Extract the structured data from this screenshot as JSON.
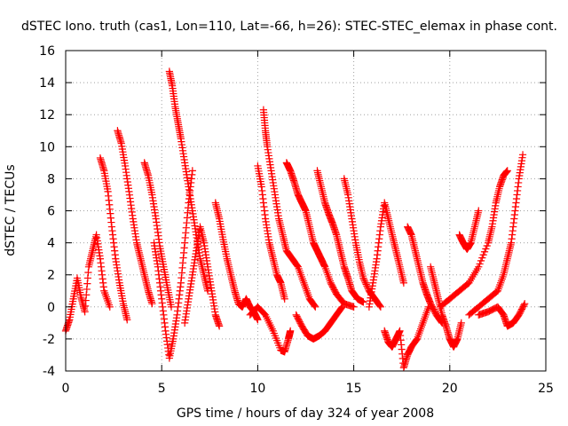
{
  "chart_data": {
    "type": "scatter",
    "title": "dSTEC Iono. truth (cas1, Lon=110, Lat=-66, h=26): STEC-STEC_elemax in phase cont.",
    "xlabel": "GPS time / hours of day 324 of year 2008",
    "ylabel": "dSTEC  / TECUs",
    "xlim": [
      0,
      25
    ],
    "ylim": [
      -4,
      16
    ],
    "x_ticks": [
      0,
      5,
      10,
      15,
      20,
      25
    ],
    "y_ticks": [
      -4,
      -2,
      0,
      2,
      4,
      6,
      8,
      10,
      12,
      14,
      16
    ],
    "grid": true,
    "marker": "plus",
    "series_color": "#ff0000",
    "series": [
      {
        "values": [
          [
            0.0,
            -1.5
          ],
          [
            0.2,
            -0.8
          ],
          [
            0.4,
            0.5
          ],
          [
            0.6,
            1.8
          ],
          [
            0.8,
            0.6
          ],
          [
            1.0,
            -0.3
          ],
          [
            1.2,
            2.5
          ],
          [
            1.4,
            3.5
          ],
          [
            1.6,
            4.5
          ],
          [
            1.8,
            3.0
          ],
          [
            2.0,
            1.0
          ],
          [
            2.3,
            0.0
          ]
        ]
      },
      {
        "values": [
          [
            1.8,
            9.3
          ],
          [
            2.0,
            8.5
          ],
          [
            2.2,
            7.2
          ],
          [
            2.4,
            5.0
          ],
          [
            2.6,
            3.0
          ],
          [
            2.8,
            1.5
          ],
          [
            3.0,
            0.2
          ],
          [
            3.2,
            -0.8
          ]
        ]
      },
      {
        "values": [
          [
            2.7,
            11.0
          ],
          [
            2.9,
            10.2
          ],
          [
            3.1,
            8.8
          ],
          [
            3.3,
            7.2
          ],
          [
            3.5,
            5.5
          ],
          [
            3.7,
            4.0
          ],
          [
            3.9,
            3.0
          ],
          [
            4.1,
            2.0
          ],
          [
            4.3,
            1.0
          ],
          [
            4.5,
            0.2
          ]
        ]
      },
      {
        "values": [
          [
            4.1,
            9.0
          ],
          [
            4.3,
            8.2
          ],
          [
            4.5,
            7.0
          ],
          [
            4.7,
            5.5
          ],
          [
            4.9,
            3.8
          ],
          [
            5.1,
            2.5
          ],
          [
            5.3,
            1.2
          ],
          [
            5.5,
            0.0
          ]
        ]
      },
      {
        "values": [
          [
            5.4,
            14.7
          ],
          [
            5.55,
            13.8
          ],
          [
            5.7,
            12.5
          ],
          [
            5.85,
            11.5
          ],
          [
            6.0,
            10.5
          ],
          [
            6.2,
            9.0
          ],
          [
            6.4,
            7.5
          ],
          [
            6.6,
            6.0
          ],
          [
            6.8,
            4.5
          ],
          [
            7.0,
            3.0
          ],
          [
            7.2,
            2.0
          ],
          [
            7.4,
            1.0
          ]
        ]
      },
      {
        "values": [
          [
            4.6,
            4.0
          ],
          [
            4.8,
            2.5
          ],
          [
            5.0,
            0.5
          ],
          [
            5.2,
            -1.5
          ],
          [
            5.4,
            -3.2
          ],
          [
            5.6,
            -2.0
          ],
          [
            5.8,
            -0.5
          ],
          [
            6.0,
            1.5
          ],
          [
            6.2,
            4.0
          ],
          [
            6.4,
            6.5
          ],
          [
            6.6,
            8.5
          ]
        ]
      },
      {
        "values": [
          [
            6.2,
            -1.0
          ],
          [
            6.4,
            0.5
          ],
          [
            6.6,
            2.0
          ],
          [
            6.8,
            3.5
          ],
          [
            7.0,
            5.0
          ],
          [
            7.2,
            4.0
          ],
          [
            7.4,
            2.5
          ],
          [
            7.6,
            1.0
          ],
          [
            7.8,
            -0.5
          ],
          [
            8.0,
            -1.2
          ]
        ]
      },
      {
        "values": [
          [
            7.8,
            6.5
          ],
          [
            8.0,
            5.5
          ],
          [
            8.2,
            4.2
          ],
          [
            8.4,
            3.0
          ],
          [
            8.6,
            2.0
          ],
          [
            8.8,
            1.0
          ],
          [
            9.0,
            0.2
          ],
          [
            9.2,
            0.0
          ],
          [
            9.4,
            0.5
          ],
          [
            9.6,
            0.0
          ],
          [
            9.8,
            -0.3
          ],
          [
            10.0,
            -0.8
          ]
        ]
      },
      {
        "values": [
          [
            10.3,
            12.3
          ],
          [
            10.4,
            11.0
          ],
          [
            10.5,
            10.0
          ],
          [
            10.7,
            8.5
          ],
          [
            10.9,
            7.0
          ],
          [
            11.1,
            5.5
          ],
          [
            11.3,
            4.5
          ],
          [
            11.5,
            3.5
          ],
          [
            11.8,
            3.0
          ],
          [
            12.1,
            2.5
          ],
          [
            12.4,
            1.5
          ],
          [
            12.7,
            0.5
          ],
          [
            13.0,
            0.0
          ]
        ]
      },
      {
        "values": [
          [
            10.0,
            8.8
          ],
          [
            10.2,
            7.5
          ],
          [
            10.4,
            5.5
          ],
          [
            10.6,
            4.0
          ],
          [
            10.8,
            3.0
          ],
          [
            11.0,
            2.0
          ],
          [
            11.2,
            1.5
          ],
          [
            11.4,
            0.5
          ]
        ]
      },
      {
        "values": [
          [
            9.6,
            -0.5
          ],
          [
            10.0,
            0.0
          ],
          [
            10.4,
            -0.5
          ],
          [
            10.8,
            -1.5
          ],
          [
            11.2,
            -2.7
          ],
          [
            11.4,
            -2.8
          ],
          [
            11.6,
            -2.0
          ],
          [
            11.7,
            -1.5
          ]
        ]
      },
      {
        "values": [
          [
            11.5,
            9.0
          ],
          [
            11.7,
            8.5
          ],
          [
            11.9,
            7.8
          ],
          [
            12.1,
            7.0
          ],
          [
            12.3,
            6.5
          ],
          [
            12.5,
            6.0
          ],
          [
            12.7,
            5.0
          ],
          [
            12.9,
            4.0
          ],
          [
            13.1,
            3.5
          ],
          [
            13.3,
            3.0
          ],
          [
            13.5,
            2.5
          ],
          [
            13.8,
            1.5
          ],
          [
            14.1,
            0.8
          ],
          [
            14.5,
            0.2
          ],
          [
            15.0,
            0.0
          ]
        ]
      },
      {
        "values": [
          [
            13.1,
            8.5
          ],
          [
            13.3,
            7.5
          ],
          [
            13.5,
            6.5
          ],
          [
            13.7,
            5.8
          ],
          [
            13.9,
            5.2
          ],
          [
            14.1,
            4.5
          ],
          [
            14.3,
            3.5
          ],
          [
            14.5,
            2.5
          ],
          [
            14.7,
            1.8
          ],
          [
            14.9,
            1.0
          ],
          [
            15.2,
            0.5
          ],
          [
            15.5,
            0.3
          ]
        ]
      },
      {
        "values": [
          [
            14.5,
            8.0
          ],
          [
            14.7,
            7.0
          ],
          [
            14.9,
            5.5
          ],
          [
            15.1,
            4.0
          ],
          [
            15.3,
            2.8
          ],
          [
            15.5,
            1.8
          ],
          [
            15.8,
            1.0
          ],
          [
            16.1,
            0.5
          ],
          [
            16.4,
            0.0
          ]
        ]
      },
      {
        "values": [
          [
            12.0,
            -0.5
          ],
          [
            12.3,
            -1.2
          ],
          [
            12.6,
            -1.8
          ],
          [
            12.9,
            -2.0
          ],
          [
            13.2,
            -1.8
          ],
          [
            13.5,
            -1.5
          ],
          [
            13.8,
            -1.0
          ],
          [
            14.1,
            -0.5
          ],
          [
            14.4,
            0.0
          ]
        ]
      },
      {
        "values": [
          [
            15.8,
            0.0
          ],
          [
            16.0,
            1.5
          ],
          [
            16.2,
            3.0
          ],
          [
            16.4,
            5.0
          ],
          [
            16.6,
            6.5
          ],
          [
            16.8,
            5.5
          ],
          [
            17.0,
            4.5
          ],
          [
            17.2,
            3.5
          ],
          [
            17.4,
            2.5
          ],
          [
            17.6,
            1.5
          ]
        ]
      },
      {
        "values": [
          [
            16.6,
            -1.5
          ],
          [
            16.8,
            -2.2
          ],
          [
            17.0,
            -2.5
          ],
          [
            17.2,
            -2.0
          ],
          [
            17.4,
            -1.5
          ],
          [
            17.6,
            -3.8
          ],
          [
            17.8,
            -3.0
          ],
          [
            18.0,
            -2.5
          ],
          [
            18.3,
            -2.0
          ],
          [
            18.6,
            -1.0
          ],
          [
            18.9,
            0.0
          ]
        ]
      },
      {
        "values": [
          [
            17.8,
            5.0
          ],
          [
            18.0,
            4.5
          ],
          [
            18.2,
            3.5
          ],
          [
            18.4,
            2.5
          ],
          [
            18.6,
            1.5
          ],
          [
            18.8,
            0.8
          ],
          [
            19.0,
            0.2
          ],
          [
            19.3,
            -0.5
          ],
          [
            19.6,
            -1.0
          ]
        ]
      },
      {
        "values": [
          [
            19.0,
            2.5
          ],
          [
            19.2,
            1.5
          ],
          [
            19.4,
            0.5
          ],
          [
            19.6,
            -0.5
          ],
          [
            19.8,
            -1.2
          ],
          [
            20.0,
            -2.0
          ],
          [
            20.2,
            -2.5
          ],
          [
            20.4,
            -2.0
          ],
          [
            20.6,
            -1.0
          ]
        ]
      },
      {
        "values": [
          [
            20.5,
            4.5
          ],
          [
            20.7,
            4.0
          ],
          [
            20.9,
            3.6
          ],
          [
            21.1,
            4.0
          ],
          [
            21.3,
            5.0
          ],
          [
            21.5,
            6.0
          ]
        ]
      },
      {
        "values": [
          [
            19.5,
            0.0
          ],
          [
            20.0,
            0.5
          ],
          [
            20.5,
            1.0
          ],
          [
            21.0,
            1.5
          ],
          [
            21.5,
            2.5
          ],
          [
            22.0,
            4.0
          ],
          [
            22.2,
            5.0
          ],
          [
            22.4,
            6.5
          ],
          [
            22.6,
            7.5
          ],
          [
            22.8,
            8.2
          ],
          [
            23.0,
            8.5
          ]
        ]
      },
      {
        "values": [
          [
            21.0,
            -0.5
          ],
          [
            21.5,
            0.0
          ],
          [
            22.0,
            0.5
          ],
          [
            22.5,
            1.0
          ],
          [
            22.8,
            2.0
          ],
          [
            23.0,
            3.0
          ],
          [
            23.2,
            4.0
          ],
          [
            23.4,
            6.0
          ],
          [
            23.6,
            8.0
          ],
          [
            23.8,
            9.5
          ]
        ]
      },
      {
        "values": [
          [
            21.5,
            -0.5
          ],
          [
            22.0,
            -0.3
          ],
          [
            22.5,
            0.0
          ],
          [
            22.8,
            -0.5
          ],
          [
            23.0,
            -1.2
          ],
          [
            23.3,
            -1.0
          ],
          [
            23.6,
            -0.5
          ],
          [
            23.9,
            0.2
          ]
        ]
      }
    ]
  }
}
